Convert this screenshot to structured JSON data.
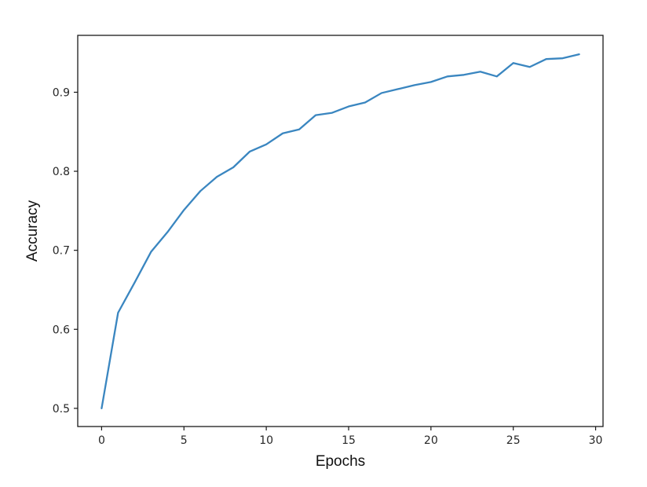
{
  "chart_data": {
    "type": "line",
    "title": "",
    "xlabel": "Epochs",
    "ylabel": "Accuracy",
    "xlim": [
      -1.45,
      30.45
    ],
    "ylim": [
      0.477,
      0.972
    ],
    "xticks": [
      0,
      5,
      10,
      15,
      20,
      25,
      30
    ],
    "xtick_labels": [
      "0",
      "5",
      "10",
      "15",
      "20",
      "25",
      "30"
    ],
    "yticks": [
      0.5,
      0.6,
      0.7,
      0.8,
      0.9
    ],
    "ytick_labels": [
      "0.5",
      "0.6",
      "0.7",
      "0.8",
      "0.9"
    ],
    "grid": false,
    "legend": "none",
    "color": "#3a86c0",
    "x": [
      0,
      1,
      2,
      3,
      4,
      5,
      6,
      7,
      8,
      9,
      10,
      11,
      12,
      13,
      14,
      15,
      16,
      17,
      18,
      19,
      20,
      21,
      22,
      23,
      24,
      25,
      26,
      27,
      28,
      29
    ],
    "series": [
      {
        "values": [
          0.5,
          0.621,
          0.659,
          0.698,
          0.723,
          0.751,
          0.775,
          0.793,
          0.805,
          0.825,
          0.834,
          0.848,
          0.853,
          0.871,
          0.874,
          0.882,
          0.887,
          0.899,
          0.904,
          0.909,
          0.913,
          0.92,
          0.922,
          0.926,
          0.92,
          0.937,
          0.932,
          0.942,
          0.943,
          0.948
        ]
      }
    ]
  }
}
